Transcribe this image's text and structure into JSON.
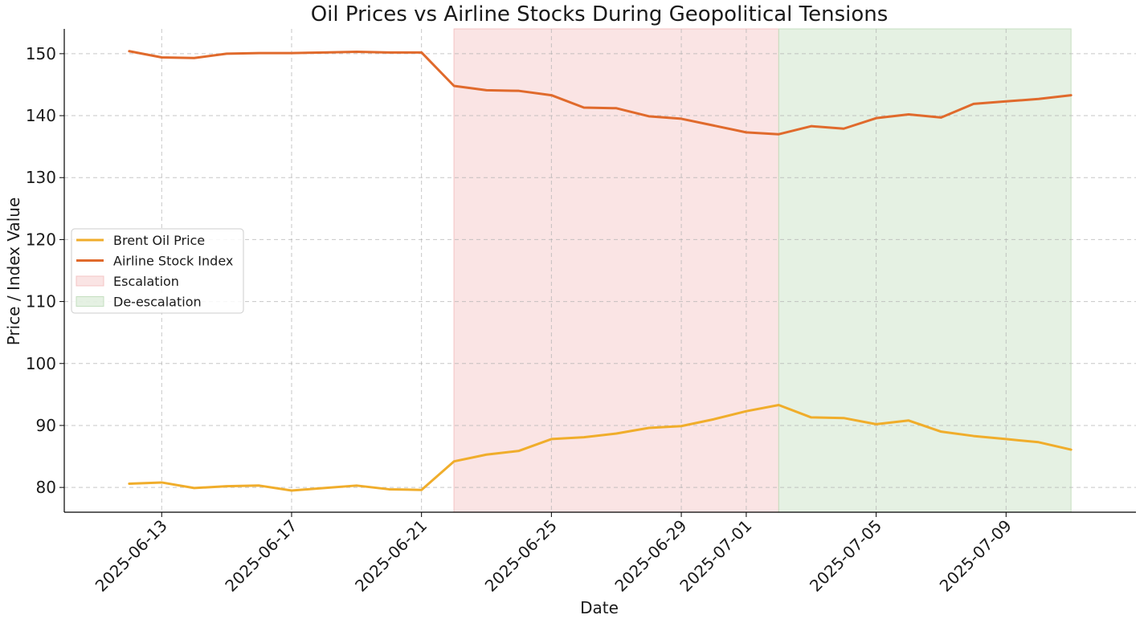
{
  "chart_data": {
    "type": "line",
    "title": "Oil Prices vs Airline Stocks During Geopolitical Tensions",
    "xlabel": "Date",
    "ylabel": "Price / Index Value",
    "ylim": [
      76,
      154
    ],
    "yticks": [
      80,
      90,
      100,
      110,
      120,
      130,
      140,
      150
    ],
    "xlim": [
      "2025-06-10",
      "2025-07-13"
    ],
    "xticks": [
      "2025-06-13",
      "2025-06-17",
      "2025-06-21",
      "2025-06-25",
      "2025-06-29",
      "2025-07-01",
      "2025-07-05",
      "2025-07-09"
    ],
    "x": [
      "2025-06-12",
      "2025-06-13",
      "2025-06-14",
      "2025-06-15",
      "2025-06-16",
      "2025-06-17",
      "2025-06-18",
      "2025-06-19",
      "2025-06-20",
      "2025-06-21",
      "2025-06-22",
      "2025-06-23",
      "2025-06-24",
      "2025-06-25",
      "2025-06-26",
      "2025-06-27",
      "2025-06-28",
      "2025-06-29",
      "2025-06-30",
      "2025-07-01",
      "2025-07-02",
      "2025-07-03",
      "2025-07-04",
      "2025-07-05",
      "2025-07-06",
      "2025-07-07",
      "2025-07-08",
      "2025-07-09",
      "2025-07-10",
      "2025-07-11"
    ],
    "series": [
      {
        "name": "Brent Oil Price",
        "color": "#f0ad2b",
        "values": [
          80.6,
          80.8,
          79.9,
          80.2,
          80.3,
          79.5,
          79.9,
          80.3,
          79.7,
          79.6,
          84.2,
          85.3,
          85.9,
          87.8,
          88.1,
          88.7,
          89.6,
          89.9,
          91.0,
          92.3,
          93.3,
          91.3,
          91.2,
          90.2,
          90.8,
          89.0,
          88.3,
          87.8,
          87.3,
          86.1
        ]
      },
      {
        "name": "Airline Stock Index",
        "color": "#e06a2c",
        "values": [
          150.4,
          149.4,
          149.3,
          150.0,
          150.1,
          150.1,
          150.2,
          150.3,
          150.2,
          150.2,
          144.8,
          144.1,
          144.0,
          143.3,
          141.3,
          141.2,
          139.9,
          139.5,
          138.4,
          137.3,
          137.0,
          138.3,
          137.9,
          139.6,
          140.2,
          139.7,
          141.9,
          142.3,
          142.7,
          143.3
        ]
      }
    ],
    "shaded_regions": [
      {
        "name": "Escalation",
        "start": "2025-06-22",
        "end": "2025-07-02",
        "color": "#f4c4c4",
        "opacity": 0.45
      },
      {
        "name": "De-escalation",
        "start": "2025-07-02",
        "end": "2025-07-11",
        "color": "#c5dfc0",
        "opacity": 0.45
      }
    ],
    "grid": true,
    "legend": "center-left"
  }
}
